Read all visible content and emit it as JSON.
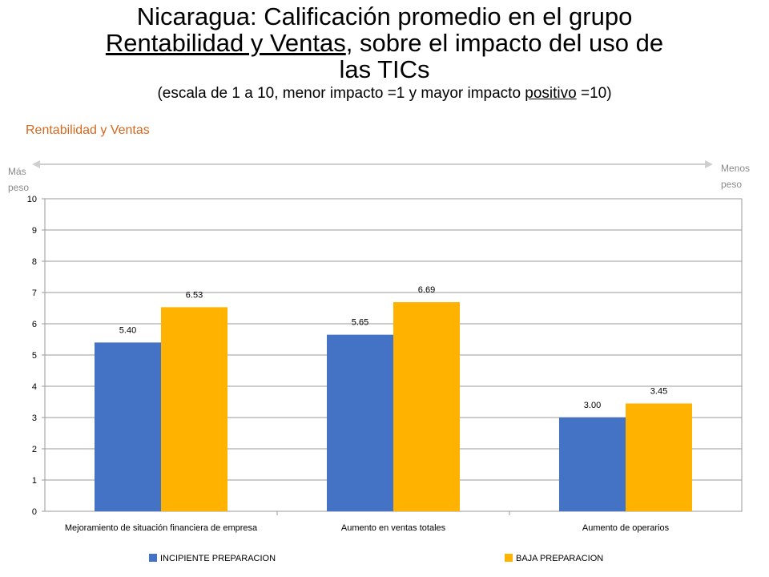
{
  "title": {
    "line1": "Nicaragua: Calificación promedio en el grupo",
    "line2_underlined": "Rentabilidad y Ventas",
    "line2_rest": ", sobre el impacto del uso de",
    "line3": "las TICs",
    "subtitle_before": "(escala de 1 a 10, menor impacto =1 y mayor impacto ",
    "subtitle_underlined": "positivo",
    "subtitle_after": " =10)"
  },
  "chart_label": "Rentabilidad y Ventas",
  "weight": {
    "left_line1": "Más",
    "left_line2": "peso",
    "right_line1": "Menos",
    "right_line2": "peso"
  },
  "chart_data": {
    "type": "bar",
    "categories": [
      "Mejoramiento de situación financiera de empresa",
      "Aumento en ventas totales",
      "Aumento de operarios"
    ],
    "series": [
      {
        "name": "INCIPIENTE PREPARACION",
        "values": [
          5.4,
          5.65,
          3.0
        ],
        "labels": [
          "5.40",
          "5.65",
          "3.00"
        ],
        "color": "#4472c4"
      },
      {
        "name": "BAJA PREPARACION",
        "values": [
          6.53,
          6.69,
          3.45
        ],
        "labels": [
          "6.53",
          "6.69",
          "3.45"
        ],
        "color": "#ffb300"
      }
    ],
    "yticks": [
      "0",
      "1",
      "2",
      "3",
      "4",
      "5",
      "6",
      "7",
      "8",
      "9",
      "10"
    ],
    "ylim": [
      0,
      10
    ],
    "grid": true,
    "legend_position": "bottom"
  }
}
